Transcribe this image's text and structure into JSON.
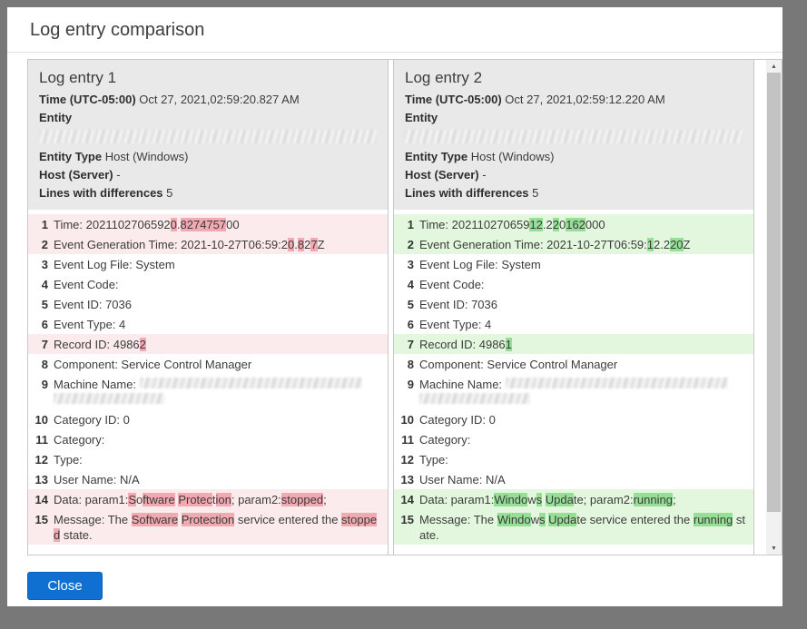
{
  "dialog": {
    "title": "Log entry comparison",
    "close_label": "Close"
  },
  "icons": {
    "scroll_up": "▲",
    "scroll_down": "▼"
  },
  "colors": {
    "overlay_bg": "#787878",
    "accent_blue": "#1070d2",
    "panel_header_bg": "#e9e9e9",
    "border": "#c8c8c8",
    "removed_row_bg": "#fcebec",
    "removed_mark": "#f3a9b1",
    "added_row_bg": "#e2f7dd",
    "added_mark": "#96df97"
  },
  "panels": [
    {
      "title": "Log entry 1",
      "diff": "removed",
      "meta": [
        {
          "label": "Time (UTC-05:00)",
          "value": "Oct 27, 2021,02:59:20.827 AM"
        },
        {
          "label": "Entity",
          "value": "",
          "redacted": true
        },
        {
          "label": "Entity Type",
          "value": "Host (Windows)"
        },
        {
          "label": "Host (Server)",
          "value": "-"
        },
        {
          "label": "Lines with differences",
          "value": "5"
        }
      ],
      "lines": [
        {
          "n": 1,
          "changed": true,
          "segs": [
            {
              "t": "Time: 2021102706592"
            },
            {
              "t": "0",
              "m": true
            },
            {
              "t": "."
            },
            {
              "t": "8274757",
              "m": true
            },
            {
              "t": "00"
            }
          ]
        },
        {
          "n": 2,
          "changed": true,
          "segs": [
            {
              "t": "Event Generation Time: 2021-10-27T06:59:2"
            },
            {
              "t": "0",
              "m": true
            },
            {
              "t": "."
            },
            {
              "t": "8",
              "m": true
            },
            {
              "t": "2"
            },
            {
              "t": "7",
              "m": true
            },
            {
              "t": "Z"
            }
          ]
        },
        {
          "n": 3,
          "segs": [
            {
              "t": "Event Log File: System"
            }
          ]
        },
        {
          "n": 4,
          "segs": [
            {
              "t": "Event Code:"
            }
          ]
        },
        {
          "n": 5,
          "segs": [
            {
              "t": "Event ID: 7036"
            }
          ]
        },
        {
          "n": 6,
          "segs": [
            {
              "t": "Event Type: 4"
            }
          ]
        },
        {
          "n": 7,
          "changed": true,
          "segs": [
            {
              "t": "Record ID: 4986"
            },
            {
              "t": "2",
              "m": true
            }
          ]
        },
        {
          "n": 8,
          "segs": [
            {
              "t": "Component: Service Control Manager"
            }
          ]
        },
        {
          "n": 9,
          "segs": [
            {
              "t": "Machine Name: "
            }
          ],
          "redacted_blocks": [
            245,
            122
          ]
        },
        {
          "n": 10,
          "segs": [
            {
              "t": "Category ID: 0"
            }
          ]
        },
        {
          "n": 11,
          "segs": [
            {
              "t": "Category:"
            }
          ]
        },
        {
          "n": 12,
          "segs": [
            {
              "t": "Type:"
            }
          ]
        },
        {
          "n": 13,
          "segs": [
            {
              "t": "User Name: N/A"
            }
          ]
        },
        {
          "n": 14,
          "changed": true,
          "segs": [
            {
              "t": "Data: param1:"
            },
            {
              "t": "S",
              "m": true
            },
            {
              "t": "o"
            },
            {
              "t": "ftware",
              "m": true
            },
            {
              "t": " "
            },
            {
              "t": "Protec",
              "m": true
            },
            {
              "t": "t"
            },
            {
              "t": "ion",
              "m": true
            },
            {
              "t": "; param2:"
            },
            {
              "t": "stopped",
              "m": true
            },
            {
              "t": ";"
            }
          ]
        },
        {
          "n": 15,
          "changed": true,
          "segs": [
            {
              "t": "Message: The "
            },
            {
              "t": "Software",
              "m": true
            },
            {
              "t": " "
            },
            {
              "t": "Protection",
              "m": true
            },
            {
              "t": " service entered the "
            },
            {
              "t": "stopped",
              "m": true
            },
            {
              "t": " state."
            }
          ]
        }
      ]
    },
    {
      "title": "Log entry 2",
      "diff": "added",
      "meta": [
        {
          "label": "Time (UTC-05:00)",
          "value": "Oct 27, 2021,02:59:12.220 AM"
        },
        {
          "label": "Entity",
          "value": "",
          "redacted": true
        },
        {
          "label": "Entity Type",
          "value": "Host (Windows)"
        },
        {
          "label": "Host (Server)",
          "value": "-"
        },
        {
          "label": "Lines with differences",
          "value": "5"
        }
      ],
      "lines": [
        {
          "n": 1,
          "changed": true,
          "segs": [
            {
              "t": "Time: 202110270659"
            },
            {
              "t": "12",
              "m": true
            },
            {
              "t": ".2"
            },
            {
              "t": "2",
              "m": true
            },
            {
              "t": "0"
            },
            {
              "t": "162",
              "m": true
            },
            {
              "t": "000"
            }
          ]
        },
        {
          "n": 2,
          "changed": true,
          "segs": [
            {
              "t": "Event Generation Time: 2021-10-27T06:59:"
            },
            {
              "t": "1",
              "m": true
            },
            {
              "t": "2.2"
            },
            {
              "t": "20",
              "m": true
            },
            {
              "t": "Z"
            }
          ]
        },
        {
          "n": 3,
          "segs": [
            {
              "t": "Event Log File: System"
            }
          ]
        },
        {
          "n": 4,
          "segs": [
            {
              "t": "Event Code:"
            }
          ]
        },
        {
          "n": 5,
          "segs": [
            {
              "t": "Event ID: 7036"
            }
          ]
        },
        {
          "n": 6,
          "segs": [
            {
              "t": "Event Type: 4"
            }
          ]
        },
        {
          "n": 7,
          "changed": true,
          "segs": [
            {
              "t": "Record ID: 4986"
            },
            {
              "t": "1",
              "m": true
            }
          ]
        },
        {
          "n": 8,
          "segs": [
            {
              "t": "Component: Service Control Manager"
            }
          ]
        },
        {
          "n": 9,
          "segs": [
            {
              "t": "Machine Name: "
            }
          ],
          "redacted_blocks": [
            245,
            122
          ]
        },
        {
          "n": 10,
          "segs": [
            {
              "t": "Category ID: 0"
            }
          ]
        },
        {
          "n": 11,
          "segs": [
            {
              "t": "Category:"
            }
          ]
        },
        {
          "n": 12,
          "segs": [
            {
              "t": "Type:"
            }
          ]
        },
        {
          "n": 13,
          "segs": [
            {
              "t": "User Name: N/A"
            }
          ]
        },
        {
          "n": 14,
          "changed": true,
          "segs": [
            {
              "t": "Data: param1:"
            },
            {
              "t": "Windo",
              "m": true
            },
            {
              "t": "w"
            },
            {
              "t": "s",
              "m": true
            },
            {
              "t": " "
            },
            {
              "t": "Upda",
              "m": true
            },
            {
              "t": "te; param2:"
            },
            {
              "t": "running",
              "m": true
            },
            {
              "t": ";"
            }
          ]
        },
        {
          "n": 15,
          "changed": true,
          "segs": [
            {
              "t": "Message: The "
            },
            {
              "t": "Windo",
              "m": true
            },
            {
              "t": "w"
            },
            {
              "t": "s",
              "m": true
            },
            {
              "t": " "
            },
            {
              "t": "Upda",
              "m": true
            },
            {
              "t": "te service entered the "
            },
            {
              "t": "running",
              "m": true
            },
            {
              "t": " state."
            }
          ]
        }
      ]
    }
  ]
}
